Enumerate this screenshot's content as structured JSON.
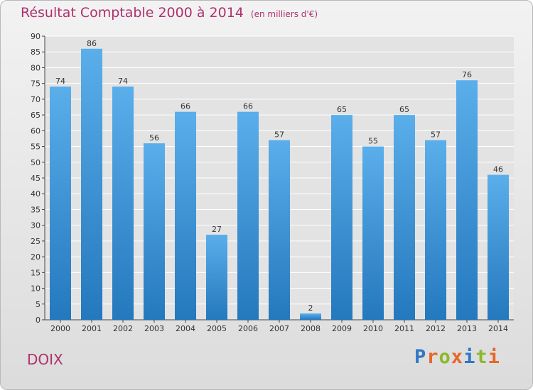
{
  "chart_data": {
    "type": "bar",
    "title": "Résultat Comptable 2000 à 2014",
    "subtitle": "(en milliers d'€)",
    "categories": [
      "2000",
      "2001",
      "2002",
      "2003",
      "2004",
      "2005",
      "2006",
      "2007",
      "2008",
      "2009",
      "2010",
      "2011",
      "2012",
      "2013",
      "2014"
    ],
    "values": [
      74,
      86,
      74,
      56,
      66,
      27,
      66,
      57,
      2,
      65,
      55,
      65,
      57,
      76,
      46
    ],
    "ylim": [
      0,
      90
    ],
    "yticks": [
      0,
      5,
      10,
      15,
      20,
      25,
      30,
      35,
      40,
      45,
      50,
      55,
      60,
      65,
      70,
      75,
      80,
      85,
      90
    ],
    "xlabel": "",
    "ylabel": "",
    "grid": true,
    "bar_color": "#3a8fd6"
  },
  "footer": {
    "city": "DOIX",
    "logo_letters": [
      "P",
      "r",
      "o",
      "x",
      "i",
      "t",
      "i"
    ],
    "logo_colors": [
      "#2f77c7",
      "#e8662a",
      "#8bb82a",
      "#e8662a",
      "#2f77c7",
      "#8bb82a",
      "#e8662a"
    ]
  }
}
